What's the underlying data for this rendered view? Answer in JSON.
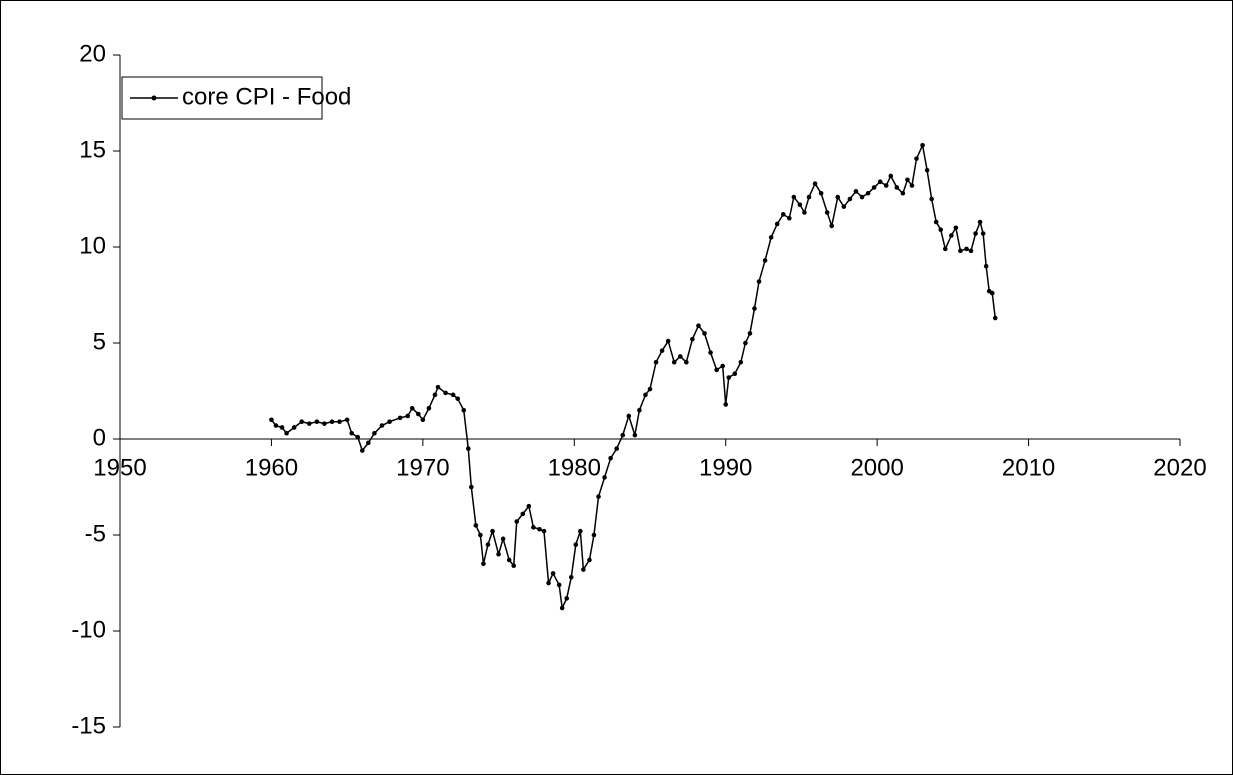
{
  "chart_data": {
    "type": "line",
    "series": [
      {
        "name": "core CPI - Food",
        "color": "#000000",
        "x": [
          1960.0,
          1960.3,
          1960.7,
          1961.0,
          1961.5,
          1962.0,
          1962.5,
          1963.0,
          1963.5,
          1964.0,
          1964.5,
          1965.0,
          1965.3,
          1965.7,
          1966.0,
          1966.4,
          1966.8,
          1967.3,
          1967.8,
          1968.5,
          1969.0,
          1969.3,
          1969.7,
          1970.0,
          1970.4,
          1970.8,
          1971.0,
          1971.5,
          1972.0,
          1972.3,
          1972.7,
          1973.0,
          1973.2,
          1973.5,
          1973.8,
          1974.0,
          1974.3,
          1974.6,
          1975.0,
          1975.3,
          1975.7,
          1976.0,
          1976.2,
          1976.6,
          1977.0,
          1977.3,
          1977.7,
          1978.0,
          1978.3,
          1978.6,
          1979.0,
          1979.2,
          1979.5,
          1979.8,
          1980.1,
          1980.4,
          1980.6,
          1981.0,
          1981.3,
          1981.6,
          1982.0,
          1982.4,
          1982.8,
          1983.2,
          1983.6,
          1984.0,
          1984.3,
          1984.7,
          1985.0,
          1985.4,
          1985.8,
          1986.2,
          1986.6,
          1987.0,
          1987.4,
          1987.8,
          1988.2,
          1988.6,
          1989.0,
          1989.4,
          1989.8,
          1990.0,
          1990.2,
          1990.6,
          1991.0,
          1991.3,
          1991.6,
          1991.9,
          1992.2,
          1992.6,
          1993.0,
          1993.4,
          1993.8,
          1994.2,
          1994.5,
          1994.9,
          1995.2,
          1995.5,
          1995.9,
          1996.3,
          1996.7,
          1997.0,
          1997.4,
          1997.8,
          1998.2,
          1998.6,
          1999.0,
          1999.4,
          1999.8,
          2000.2,
          2000.6,
          2000.9,
          2001.3,
          2001.7,
          2002.0,
          2002.3,
          2002.6,
          2003.0,
          2003.3,
          2003.6,
          2003.9,
          2004.2,
          2004.5,
          2004.9,
          2005.2,
          2005.5,
          2005.9,
          2006.2,
          2006.5,
          2006.8,
          2007.0,
          2007.2,
          2007.4,
          2007.6,
          2007.8
        ],
        "values": [
          1.0,
          0.7,
          0.6,
          0.3,
          0.6,
          0.9,
          0.8,
          0.9,
          0.8,
          0.9,
          0.9,
          1.0,
          0.3,
          0.1,
          -0.6,
          -0.2,
          0.3,
          0.7,
          0.9,
          1.1,
          1.2,
          1.6,
          1.3,
          1.0,
          1.6,
          2.3,
          2.7,
          2.4,
          2.3,
          2.1,
          1.5,
          -0.5,
          -2.5,
          -4.5,
          -5.0,
          -6.5,
          -5.5,
          -4.8,
          -6.0,
          -5.2,
          -6.3,
          -6.6,
          -4.3,
          -3.9,
          -3.5,
          -4.6,
          -4.7,
          -4.8,
          -7.5,
          -7.0,
          -7.6,
          -8.8,
          -8.3,
          -7.2,
          -5.5,
          -4.8,
          -6.8,
          -6.3,
          -5.0,
          -3.0,
          -2.0,
          -1.0,
          -0.5,
          0.2,
          1.2,
          0.2,
          1.5,
          2.3,
          2.6,
          4.0,
          4.6,
          5.1,
          4.0,
          4.3,
          4.0,
          5.2,
          5.9,
          5.5,
          4.5,
          3.6,
          3.8,
          1.8,
          3.2,
          3.4,
          4.0,
          5.0,
          5.5,
          6.8,
          8.2,
          9.3,
          10.5,
          11.2,
          11.7,
          11.5,
          12.6,
          12.2,
          11.8,
          12.6,
          13.3,
          12.8,
          11.8,
          11.1,
          12.6,
          12.1,
          12.5,
          12.9,
          12.6,
          12.8,
          13.1,
          13.4,
          13.2,
          13.7,
          13.1,
          12.8,
          13.5,
          13.2,
          14.6,
          15.3,
          14.0,
          12.5,
          11.3,
          10.9,
          9.9,
          10.6,
          11.0,
          9.8,
          9.9,
          9.8,
          10.7,
          11.3,
          10.7,
          9.0,
          7.7,
          7.6,
          6.3
        ]
      }
    ],
    "xlim": [
      1950,
      2020
    ],
    "xticks": [
      1950,
      1960,
      1970,
      1980,
      1990,
      2000,
      2010,
      2020
    ],
    "ylim": [
      -15,
      20
    ],
    "yticks": [
      -15,
      -10,
      -5,
      0,
      5,
      10,
      15,
      20
    ],
    "legend": "upper left",
    "grid": false
  }
}
